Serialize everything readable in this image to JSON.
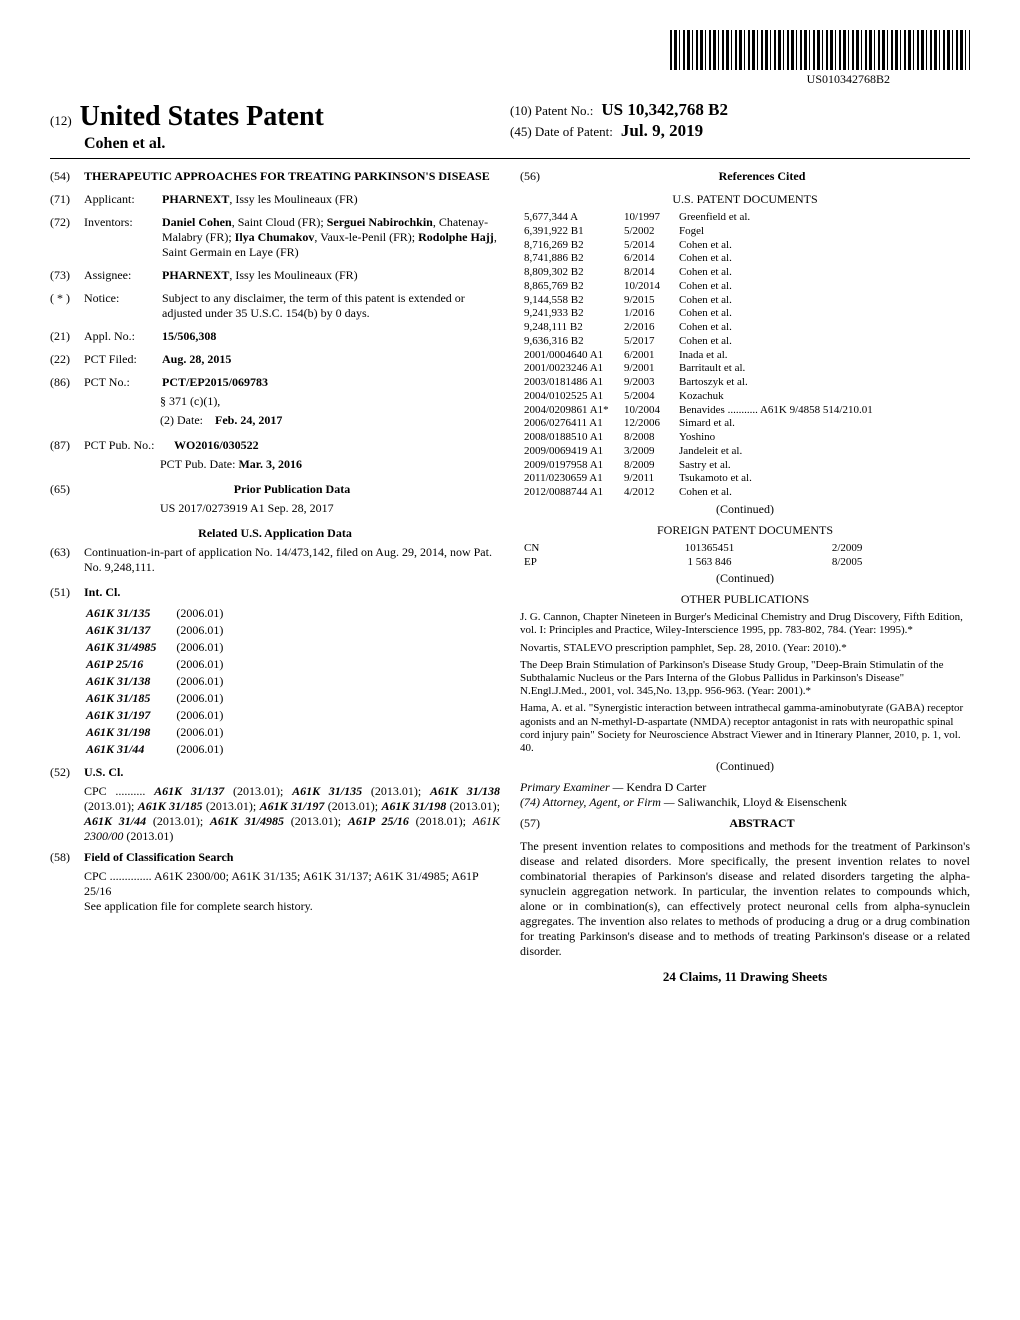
{
  "barcode_label": "US010342768B2",
  "header": {
    "tag12": "(12)",
    "usp": "United States Patent",
    "inventors_short": "Cohen et al.",
    "patent_no_label": "(10) Patent No.:",
    "patent_no": "US 10,342,768 B2",
    "date_label": "(45) Date of Patent:",
    "date": "Jul. 9, 2019"
  },
  "fields": {
    "f54": {
      "code": "(54)",
      "title": "THERAPEUTIC APPROACHES FOR TREATING PARKINSON'S DISEASE"
    },
    "f71": {
      "code": "(71)",
      "label": "Applicant:",
      "body": "PHARNEXT, Issy les Moulineaux (FR)"
    },
    "f72": {
      "code": "(72)",
      "label": "Inventors:",
      "body": "Daniel Cohen, Saint Cloud (FR); Serguei Nabirochkin, Chatenay-Malabry (FR); Ilya Chumakov, Vaux-le-Penil (FR); Rodolphe Hajj, Saint Germain en Laye (FR)"
    },
    "f73": {
      "code": "(73)",
      "label": "Assignee:",
      "body": "PHARNEXT, Issy les Moulineaux (FR)"
    },
    "fstar": {
      "code": "( * )",
      "label": "Notice:",
      "body": "Subject to any disclaimer, the term of this patent is extended or adjusted under 35 U.S.C. 154(b) by 0 days."
    },
    "f21": {
      "code": "(21)",
      "label": "Appl. No.:",
      "body": "15/506,308"
    },
    "f22": {
      "code": "(22)",
      "label": "PCT Filed:",
      "body": "Aug. 28, 2015"
    },
    "f86": {
      "code": "(86)",
      "label": "PCT No.:",
      "body": "PCT/EP2015/069783",
      "sub1": "§ 371 (c)(1),",
      "sub2_label": "(2) Date:",
      "sub2": "Feb. 24, 2017"
    },
    "f87": {
      "code": "(87)",
      "label": "PCT Pub. No.:",
      "body": "WO2016/030522",
      "sub_label": "PCT Pub. Date:",
      "sub": "Mar. 3, 2016"
    },
    "f65": {
      "code": "(65)",
      "heading": "Prior Publication Data",
      "line": "US 2017/0273919 A1    Sep. 28, 2017"
    },
    "related_heading": "Related U.S. Application Data",
    "f63": {
      "code": "(63)",
      "body": "Continuation-in-part of application No. 14/473,142, filed on Aug. 29, 2014, now Pat. No. 9,248,111."
    },
    "f51": {
      "code": "(51)",
      "label": "Int. Cl."
    },
    "f52": {
      "code": "(52)",
      "label": "U.S. Cl."
    },
    "f58": {
      "code": "(58)",
      "label": "Field of Classification Search"
    },
    "f56": {
      "code": "(56)",
      "heading": "References Cited"
    },
    "f57": {
      "code": "(57)",
      "heading": "ABSTRACT"
    }
  },
  "int_cl": [
    [
      "A61K 31/135",
      "(2006.01)"
    ],
    [
      "A61K 31/137",
      "(2006.01)"
    ],
    [
      "A61K 31/4985",
      "(2006.01)"
    ],
    [
      "A61P 25/16",
      "(2006.01)"
    ],
    [
      "A61K 31/138",
      "(2006.01)"
    ],
    [
      "A61K 31/185",
      "(2006.01)"
    ],
    [
      "A61K 31/197",
      "(2006.01)"
    ],
    [
      "A61K 31/198",
      "(2006.01)"
    ],
    [
      "A61K 31/44",
      "(2006.01)"
    ]
  ],
  "us_cl": {
    "prefix": "CPC ..........",
    "body": "A61K 31/137 (2013.01); A61K 31/135 (2013.01); A61K 31/138 (2013.01); A61K 31/185 (2013.01); A61K 31/197 (2013.01); A61K 31/198 (2013.01); A61K 31/44 (2013.01); A61K 31/4985 (2013.01); A61P 25/16 (2018.01); A61K 2300/00 (2013.01)"
  },
  "field_search": {
    "line1": "CPC .............. A61K 2300/00; A61K 31/135; A61K 31/137; A61K 31/4985; A61P 25/16",
    "line2": "See application file for complete search history."
  },
  "us_patents": [
    [
      "5,677,344 A",
      "10/1997",
      "Greenfield et al."
    ],
    [
      "6,391,922 B1",
      "5/2002",
      "Fogel"
    ],
    [
      "8,716,269 B2",
      "5/2014",
      "Cohen et al."
    ],
    [
      "8,741,886 B2",
      "6/2014",
      "Cohen et al."
    ],
    [
      "8,809,302 B2",
      "8/2014",
      "Cohen et al."
    ],
    [
      "8,865,769 B2",
      "10/2014",
      "Cohen et al."
    ],
    [
      "9,144,558 B2",
      "9/2015",
      "Cohen et al."
    ],
    [
      "9,241,933 B2",
      "1/2016",
      "Cohen et al."
    ],
    [
      "9,248,111 B2",
      "2/2016",
      "Cohen et al."
    ],
    [
      "9,636,316 B2",
      "5/2017",
      "Cohen et al."
    ],
    [
      "2001/0004640 A1",
      "6/2001",
      "Inada et al."
    ],
    [
      "2001/0023246 A1",
      "9/2001",
      "Barritault et al."
    ],
    [
      "2003/0181486 A1",
      "9/2003",
      "Bartoszyk et al."
    ],
    [
      "2004/0102525 A1",
      "5/2004",
      "Kozachuk"
    ],
    [
      "2004/0209861 A1*",
      "10/2004",
      "Benavides ........... A61K 9/4858 514/210.01"
    ],
    [
      "2006/0276411 A1",
      "12/2006",
      "Simard et al."
    ],
    [
      "2008/0188510 A1",
      "8/2008",
      "Yoshino"
    ],
    [
      "2009/0069419 A1",
      "3/2009",
      "Jandeleit et al."
    ],
    [
      "2009/0197958 A1",
      "8/2009",
      "Sastry et al."
    ],
    [
      "2011/0230659 A1",
      "9/2011",
      "Tsukamoto et al."
    ],
    [
      "2012/0088744 A1",
      "4/2012",
      "Cohen et al."
    ]
  ],
  "us_continued": "(Continued)",
  "foreign_heading": "FOREIGN PATENT DOCUMENTS",
  "foreign": [
    [
      "CN",
      "101365451",
      "2/2009"
    ],
    [
      "EP",
      "1 563 846",
      "8/2005"
    ]
  ],
  "foreign_continued": "(Continued)",
  "other_heading": "OTHER PUBLICATIONS",
  "other_pubs": [
    "J. G. Cannon, Chapter Nineteen in Burger's Medicinal Chemistry and Drug Discovery, Fifth Edition, vol. I: Principles and Practice, Wiley-Interscience 1995, pp. 783-802, 784. (Year: 1995).*",
    "Novartis, STALEVO prescription pamphlet, Sep. 28, 2010. (Year: 2010).*",
    "The Deep Brain Stimulation of Parkinson's Disease Study Group, \"Deep-Brain Stimulatin of the Subthalamic Nucleus or the Pars Interna of the Globus Pallidus in Parkinson's Disease\" N.Engl.J.Med., 2001, vol. 345,No. 13,pp. 956-963. (Year: 2001).*",
    "Hama, A. et al. \"Synergistic interaction between intrathecal gamma-aminobutyrate (GABA) receptor agonists and an N-methyl-D-aspartate (NMDA) receptor antagonist in rats with neuropathic spinal cord injury pain\" Society for Neuroscience Abstract Viewer and in Itinerary Planner, 2010, p. 1, vol. 40."
  ],
  "other_continued": "(Continued)",
  "examiner_label": "Primary Examiner —",
  "examiner": "Kendra D Carter",
  "attorney_label": "(74) Attorney, Agent, or Firm —",
  "attorney": "Saliwanchik, Lloyd & Eisenschenk",
  "abstract": "The present invention relates to compositions and methods for the treatment of Parkinson's disease and related disorders. More specifically, the present invention relates to novel combinatorial therapies of Parkinson's disease and related disorders targeting the alpha-synuclein aggregation network. In particular, the invention relates to compounds which, alone or in combination(s), can effectively protect neuronal cells from alpha-synuclein aggregates. The invention also relates to methods of producing a drug or a drug combination for treating Parkinson's disease and to methods of treating Parkinson's disease or a related disorder.",
  "claims_line": "24 Claims, 11 Drawing Sheets"
}
